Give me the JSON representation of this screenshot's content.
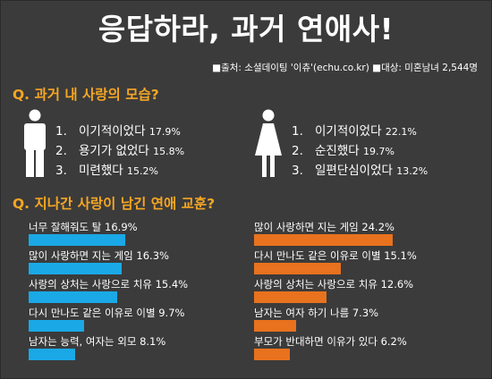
{
  "title": "응답하라, 과거 연애사!",
  "source": "■출처: 소셜데이팅 '이츄'(echu.co.kr)  ■대상: 미혼남녀 2,544명",
  "colors": {
    "background": "#3b3b3b",
    "accent": "#f5a623",
    "male": "#1aa9e6",
    "female": "#e8721e"
  },
  "section1": {
    "question": "Q. 과거 내 사랑의 모습?",
    "male": {
      "icon": "male-person-icon",
      "items": [
        {
          "num": "1.",
          "label": "이기적이었다",
          "pct": "17.9%"
        },
        {
          "num": "2.",
          "label": "용기가 없었다",
          "pct": "15.8%"
        },
        {
          "num": "3.",
          "label": "미련했다",
          "pct": "15.2%"
        }
      ]
    },
    "female": {
      "icon": "female-person-icon",
      "items": [
        {
          "num": "1.",
          "label": "이기적이었다",
          "pct": "22.1%"
        },
        {
          "num": "2.",
          "label": "순진했다",
          "pct": "19.7%"
        },
        {
          "num": "3.",
          "label": "일편단심이었다",
          "pct": "13.2%"
        }
      ]
    }
  },
  "section2": {
    "question": "Q. 지나간 사랑이 남긴 연애 교훈?"
  },
  "chart_data": [
    {
      "type": "bar",
      "categories": [
        "너무 잘해줘도 탈",
        "많이 사랑하면 지는 게임",
        "사랑의 상처는 사랑으로 치유",
        "다시 만나도 같은 이유로 이별",
        "남자는 능력, 여자는 외모"
      ],
      "values": [
        16.9,
        16.3,
        15.4,
        9.7,
        8.1
      ],
      "labels": [
        "너무 잘해줘도 탈 16.9%",
        "많이 사랑하면 지는 게임 16.3%",
        "사랑의 상처는 사랑으로 치유 15.4%",
        "다시 만나도 같은 이유로 이별 9.7%",
        "남자는 능력, 여자는 외모 8.1%"
      ],
      "color": "#1aa9e6"
    },
    {
      "type": "bar",
      "categories": [
        "많이 사랑하면 지는 게임",
        "다시 만나도 같은 이유로 이별",
        "사랑의 상처는 사랑으로 치유",
        "남자는 여자 하기 나름",
        "부모가 반대하면 이유가 있다"
      ],
      "values": [
        24.2,
        15.1,
        12.6,
        7.3,
        6.2
      ],
      "labels": [
        "많이 사랑하면 지는 게임 24.2%",
        "다시 만나도 같은 이유로 이별 15.1%",
        "사랑의 상처는 사랑으로 치유 12.6%",
        "남자는 여자 하기 나름 7.3%",
        "부모가 반대하면 이유가 있다 6.2%"
      ],
      "color": "#e8721e"
    }
  ]
}
